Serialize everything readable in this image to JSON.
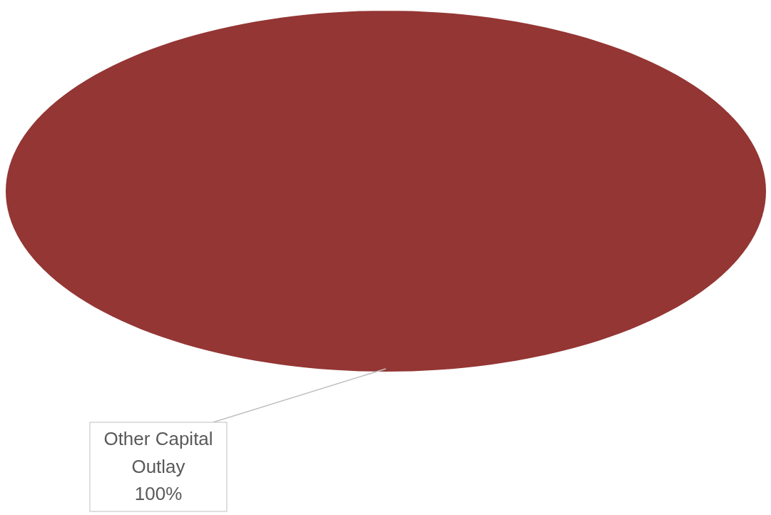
{
  "chart_data": {
    "type": "pie",
    "categories": [
      "Other Capital Outlay"
    ],
    "values": [
      100
    ],
    "colors": [
      "#943634"
    ],
    "value_labels": [
      "100%"
    ]
  }
}
